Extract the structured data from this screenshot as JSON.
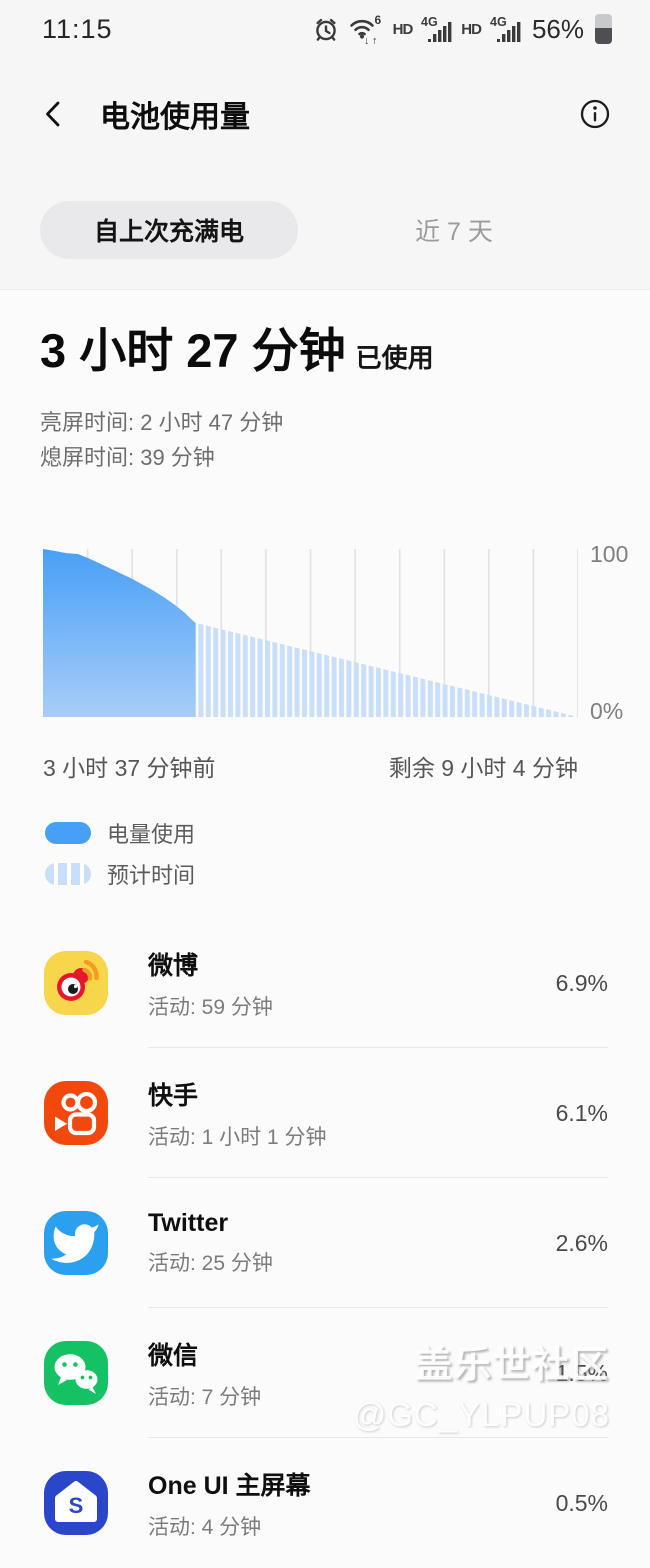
{
  "status_bar": {
    "time": "11:15",
    "battery_percent": "56%",
    "hd_label": "HD",
    "network_label": "4G",
    "wifi_speed_label": "6"
  },
  "header": {
    "title": "电池使用量"
  },
  "tabs": {
    "selected": "自上次充满电",
    "other": "近 7 天"
  },
  "summary": {
    "duration": "3 小时 27 分钟",
    "suffix": "已使用",
    "screen_on": "亮屏时间: 2 小时 47 分钟",
    "screen_off": "熄屏时间:  39 分钟"
  },
  "chart_data": {
    "type": "area",
    "ylim": [
      0,
      100
    ],
    "y_top_label": "100",
    "y_bottom_label": "0%",
    "x_left_label": "3 小时 37 分钟前",
    "x_right_label": "剩余 9 小时 4 分钟",
    "grid": true,
    "gridline_intervals": 12,
    "series": [
      {
        "name": "电量使用",
        "style": "solid-area",
        "points": [
          [
            0,
            100
          ],
          [
            0.02,
            99
          ],
          [
            0.045,
            97.5
          ],
          [
            0.065,
            97
          ],
          [
            0.085,
            94.5
          ],
          [
            0.105,
            91.5
          ],
          [
            0.125,
            88.5
          ],
          [
            0.145,
            85.5
          ],
          [
            0.165,
            82.5
          ],
          [
            0.185,
            79
          ],
          [
            0.205,
            75.5
          ],
          [
            0.225,
            71.5
          ],
          [
            0.245,
            67
          ],
          [
            0.265,
            62
          ],
          [
            0.276,
            58.5
          ],
          [
            0.285,
            56
          ]
        ]
      },
      {
        "name": "预计时间",
        "style": "striped-area",
        "points": [
          [
            0.285,
            56
          ],
          [
            1,
            0
          ]
        ]
      }
    ],
    "colors": {
      "history_top": "#47a0f6",
      "history_bottom": "#a8cdf8",
      "forecast_stripe": "#c9def9",
      "gridline": "#e2e2e4"
    }
  },
  "legend": [
    {
      "label": "电量使用",
      "swatch": "solid"
    },
    {
      "label": "预计时间",
      "swatch": "striped"
    }
  ],
  "apps": [
    {
      "name": "微博",
      "activity": "活动: 59 分钟",
      "percent": "6.9%"
    },
    {
      "name": "快手",
      "activity": "活动: 1 小时 1 分钟",
      "percent": "6.1%"
    },
    {
      "name": "Twitter",
      "activity": "活动: 25 分钟",
      "percent": "2.6%"
    },
    {
      "name": "微信",
      "activity": "活动: 7 分钟",
      "percent": "1.5%"
    },
    {
      "name": "One UI 主屏幕",
      "activity": "活动: 4 分钟",
      "percent": "0.5%"
    }
  ],
  "watermark": {
    "line1": "盖乐世社区",
    "line2": "@GC_YLPUP08"
  }
}
